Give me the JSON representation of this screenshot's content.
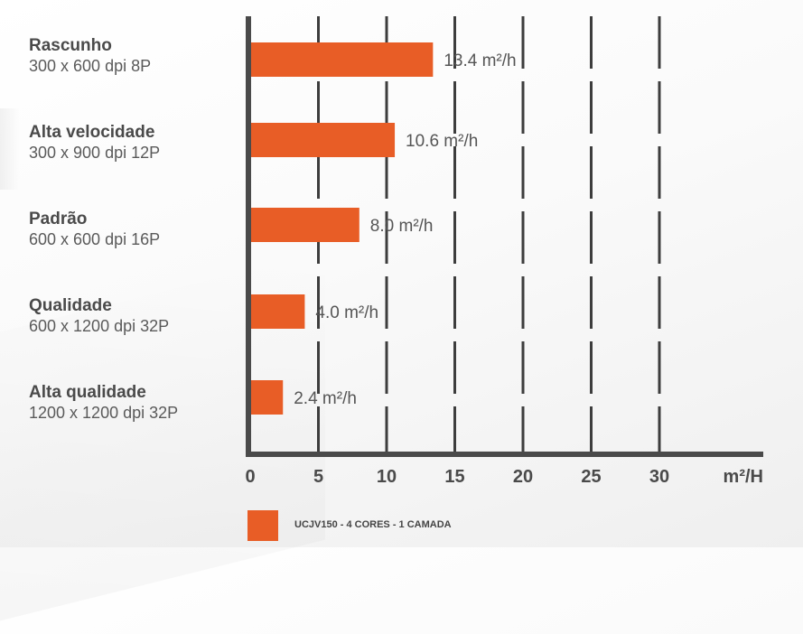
{
  "chart_data": {
    "type": "bar",
    "orientation": "horizontal",
    "categories": [
      {
        "name": "Rascunho",
        "spec": "300 x 600 dpi 8P"
      },
      {
        "name": "Alta velocidade",
        "spec": "300 x 900 dpi 12P"
      },
      {
        "name": "Padrão",
        "spec": "600 x 600 dpi 16P"
      },
      {
        "name": "Qualidade",
        "spec": "600 x 1200 dpi 32P"
      },
      {
        "name": "Alta qualidade",
        "spec": "1200 x 1200 dpi 32P"
      }
    ],
    "series": [
      {
        "name": "UCJV150 - 4 CORES - 1 CAMADA",
        "values": [
          13.4,
          10.6,
          8.0,
          4.0,
          2.4
        ],
        "color": "#e85d26"
      }
    ],
    "value_labels": [
      "13.4 m²/h",
      "10.6 m²/h",
      "8.0 m²/h",
      "4.0 m²/h",
      "2.4 m²/h"
    ],
    "x_ticks": [
      0,
      5,
      10,
      15,
      20,
      25,
      30
    ],
    "x_unit": "m²/H",
    "xlim": [
      0,
      30
    ],
    "grid": "vertical dashed",
    "legend_position": "bottom",
    "colors": {
      "bar": "#e85d26",
      "axis": "#4a4a4a",
      "grid": "#3d3d3d",
      "text": "#4a4a4a"
    }
  }
}
